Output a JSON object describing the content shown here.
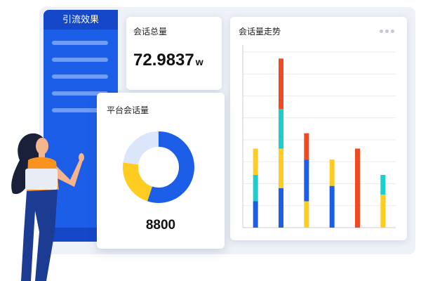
{
  "sidebar": {
    "title": "引流效果"
  },
  "total_card": {
    "title": "会话总量",
    "value": "72.9837",
    "unit": "w"
  },
  "platform_card": {
    "title": "平台会话量",
    "value": "8800",
    "donut": [
      {
        "fraction": 0.55,
        "color": "#1d5ee8"
      },
      {
        "fraction": 0.22,
        "color": "#ffcc22"
      },
      {
        "fraction": 0.23,
        "color": "#dce6fa"
      }
    ]
  },
  "trend_card": {
    "title": "会话量走势",
    "more_icon": "more-dots-icon"
  },
  "chart_data": {
    "type": "bar",
    "stacked": true,
    "title": "会话量走势",
    "grid": true,
    "ylim": [
      0,
      8
    ],
    "bars": [
      [
        {
          "v": 1.2,
          "c": "#1d5ee8"
        },
        {
          "v": 1.2,
          "c": "#1ccfcf"
        },
        {
          "v": 1.2,
          "c": "#ffcc22"
        }
      ],
      [
        {
          "v": 1.8,
          "c": "#1d5ee8"
        },
        {
          "v": 1.8,
          "c": "#ffcc22"
        },
        {
          "v": 1.8,
          "c": "#1ccfcf"
        },
        {
          "v": 2.3,
          "c": "#f04a25"
        }
      ],
      [
        {
          "v": 1.2,
          "c": "#ffcc22"
        },
        {
          "v": 1.9,
          "c": "#1d5ee8"
        },
        {
          "v": 1.2,
          "c": "#f04a25"
        }
      ],
      [
        {
          "v": 1.9,
          "c": "#1d5ee8"
        },
        {
          "v": 1.2,
          "c": "#ffcc22"
        }
      ],
      [
        {
          "v": 3.6,
          "c": "#f04a25"
        }
      ],
      [
        {
          "v": 1.5,
          "c": "#ffcc22"
        },
        {
          "v": 0.9,
          "c": "#1ccfcf"
        }
      ]
    ]
  }
}
